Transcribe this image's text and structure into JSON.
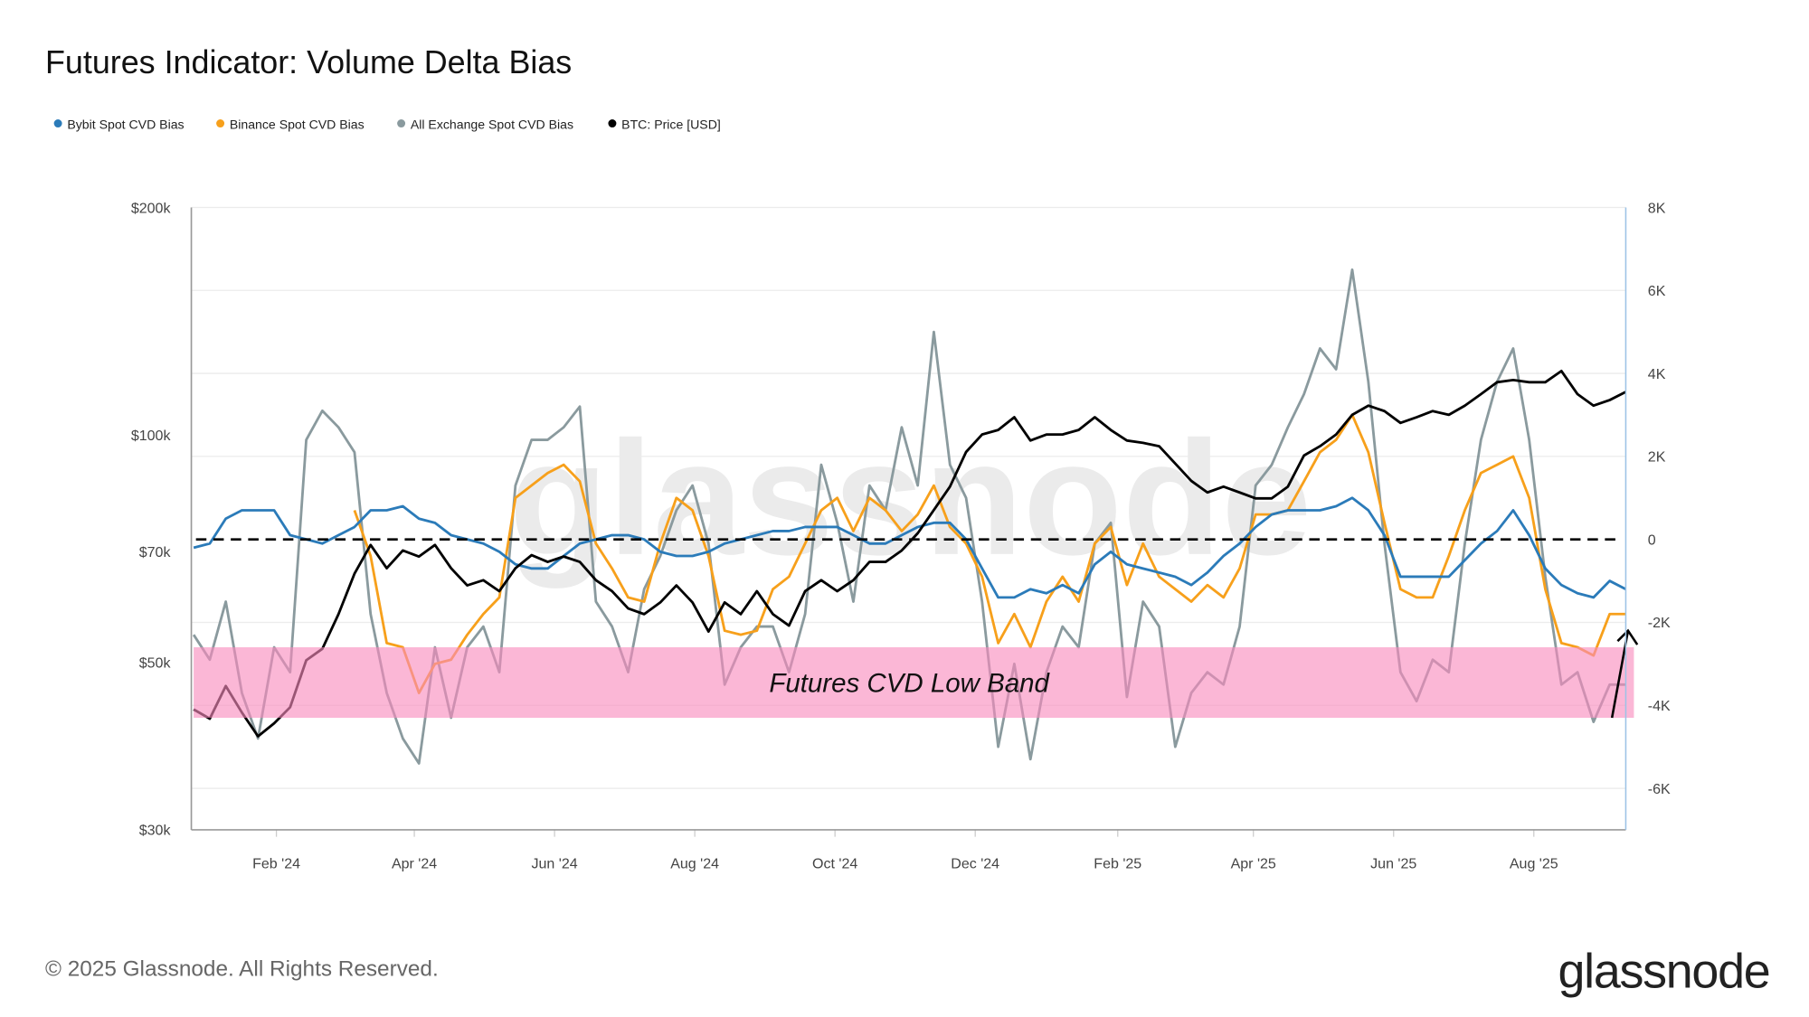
{
  "title": "Futures Indicator: Volume Delta Bias",
  "footer": {
    "copyright": "© 2025 Glassnode. All Rights Reserved.",
    "logo_text": "glassnode",
    "watermark_text": "glassnode"
  },
  "legend": [
    {
      "label": "Bybit Spot CVD Bias",
      "color": "#2b7bb9"
    },
    {
      "label": "Binance Spot CVD Bias",
      "color": "#f7a01b"
    },
    {
      "label": "All Exchange Spot CVD Bias",
      "color": "#8a9a9e"
    },
    {
      "label": "BTC: Price [USD]",
      "color": "#000000"
    }
  ],
  "chart_data": {
    "type": "line",
    "title": "Futures Indicator: Volume Delta Bias",
    "xlim": [
      "2023-12-26",
      "2025-09-10"
    ],
    "x_ticks": [
      {
        "date": "2024-02-01",
        "label": "Feb '24"
      },
      {
        "date": "2024-04-01",
        "label": "Apr '24"
      },
      {
        "date": "2024-06-01",
        "label": "Jun '24"
      },
      {
        "date": "2024-08-01",
        "label": "Aug '24"
      },
      {
        "date": "2024-10-01",
        "label": "Oct '24"
      },
      {
        "date": "2024-12-01",
        "label": "Dec '24"
      },
      {
        "date": "2025-02-01",
        "label": "Feb '25"
      },
      {
        "date": "2025-04-01",
        "label": "Apr '25"
      },
      {
        "date": "2025-06-01",
        "label": "Jun '25"
      },
      {
        "date": "2025-08-01",
        "label": "Aug '25"
      }
    ],
    "y_left": {
      "scale": "log",
      "range": [
        30000,
        200000
      ],
      "ticks": [
        {
          "value": 200000,
          "label": "$200k"
        },
        {
          "value": 100000,
          "label": "$100k"
        },
        {
          "value": 70000,
          "label": "$70k"
        },
        {
          "value": 50000,
          "label": "$50k"
        },
        {
          "value": 30000,
          "label": "$30k"
        }
      ]
    },
    "y_right": {
      "scale": "linear",
      "range": [
        -7000,
        8000
      ],
      "ticks": [
        {
          "value": 8000,
          "label": "8K"
        },
        {
          "value": 6000,
          "label": "6K"
        },
        {
          "value": 4000,
          "label": "4K"
        },
        {
          "value": 2000,
          "label": "2K"
        },
        {
          "value": 0,
          "label": "0"
        },
        {
          "value": -2000,
          "label": "-2K"
        },
        {
          "value": -4000,
          "label": "-4K"
        },
        {
          "value": -6000,
          "label": "-6K"
        }
      ]
    },
    "grid": true,
    "legend_position": "top-left",
    "zero_line": {
      "value": 0,
      "style": "dashed",
      "color": "#000000"
    },
    "band": {
      "label": "Futures CVD Low Band",
      "from": -4300,
      "to": -2600,
      "color": "#f98bbd"
    },
    "annotation_arrow": {
      "from": {
        "date": "2025-09-04",
        "value": -4300
      },
      "to": {
        "date": "2025-09-13",
        "value": -2200
      },
      "color": "#000000"
    },
    "dates": [
      "2023-12-27",
      "2024-01-03",
      "2024-01-10",
      "2024-01-17",
      "2024-01-24",
      "2024-01-31",
      "2024-02-07",
      "2024-02-14",
      "2024-02-21",
      "2024-02-28",
      "2024-03-06",
      "2024-03-13",
      "2024-03-20",
      "2024-03-27",
      "2024-04-03",
      "2024-04-10",
      "2024-04-17",
      "2024-04-24",
      "2024-05-01",
      "2024-05-08",
      "2024-05-15",
      "2024-05-22",
      "2024-05-29",
      "2024-06-05",
      "2024-06-12",
      "2024-06-19",
      "2024-06-26",
      "2024-07-03",
      "2024-07-10",
      "2024-07-17",
      "2024-07-24",
      "2024-07-31",
      "2024-08-07",
      "2024-08-14",
      "2024-08-21",
      "2024-08-28",
      "2024-09-04",
      "2024-09-11",
      "2024-09-18",
      "2024-09-25",
      "2024-10-02",
      "2024-10-09",
      "2024-10-16",
      "2024-10-23",
      "2024-10-30",
      "2024-11-06",
      "2024-11-13",
      "2024-11-20",
      "2024-11-27",
      "2024-12-04",
      "2024-12-11",
      "2024-12-18",
      "2024-12-25",
      "2025-01-01",
      "2025-01-08",
      "2025-01-15",
      "2025-01-22",
      "2025-01-29",
      "2025-02-05",
      "2025-02-12",
      "2025-02-19",
      "2025-02-26",
      "2025-03-05",
      "2025-03-12",
      "2025-03-19",
      "2025-03-26",
      "2025-04-02",
      "2025-04-09",
      "2025-04-16",
      "2025-04-23",
      "2025-04-30",
      "2025-05-07",
      "2025-05-14",
      "2025-05-21",
      "2025-05-28",
      "2025-06-04",
      "2025-06-11",
      "2025-06-18",
      "2025-06-25",
      "2025-07-02",
      "2025-07-09",
      "2025-07-16",
      "2025-07-23",
      "2025-07-30",
      "2025-08-06",
      "2025-08-13",
      "2025-08-20",
      "2025-08-27",
      "2025-09-03",
      "2025-09-10"
    ],
    "series": [
      {
        "name": "All Exchange Spot CVD Bias",
        "axis": "right",
        "color": "#8a9a9e",
        "values": [
          -2300,
          -2900,
          -1500,
          -3700,
          -4800,
          -2600,
          -3200,
          2400,
          3100,
          2700,
          2100,
          -1800,
          -3700,
          -4800,
          -5400,
          -2600,
          -4300,
          -2600,
          -2100,
          -3200,
          1300,
          2400,
          2400,
          2700,
          3200,
          -1500,
          -2100,
          -3200,
          -1200,
          -400,
          700,
          1300,
          -100,
          -3500,
          -2600,
          -2100,
          -2100,
          -3200,
          -1800,
          1800,
          400,
          -1500,
          1300,
          700,
          2700,
          1300,
          5000,
          1800,
          1000,
          -1500,
          -5000,
          -3000,
          -5300,
          -3200,
          -2100,
          -2600,
          -100,
          400,
          -3800,
          -1500,
          -2100,
          -5000,
          -3700,
          -3200,
          -3500,
          -2100,
          1300,
          1800,
          2700,
          3500,
          4600,
          4100,
          6500,
          3800,
          -100,
          -3200,
          -3900,
          -2900,
          -3200,
          -100,
          2400,
          3800,
          4600,
          2400,
          -900,
          -3500,
          -3200,
          -4400,
          -3500,
          -3500
        ]
      },
      {
        "name": "Binance Spot CVD Bias",
        "axis": "right",
        "color": "#f7a01b",
        "values": [
          null,
          null,
          null,
          null,
          null,
          null,
          null,
          null,
          null,
          null,
          700,
          -400,
          -2500,
          -2600,
          -3700,
          -3000,
          -2900,
          -2300,
          -1800,
          -1400,
          1000,
          1300,
          1600,
          1800,
          1400,
          -100,
          -700,
          -1400,
          -1500,
          -100,
          1000,
          700,
          -400,
          -2200,
          -2300,
          -2200,
          -1200,
          -900,
          -100,
          700,
          1000,
          200,
          1000,
          700,
          200,
          600,
          1300,
          300,
          -100,
          -900,
          -2500,
          -1800,
          -2600,
          -1500,
          -900,
          -1500,
          -100,
          300,
          -1100,
          -100,
          -900,
          -1200,
          -1500,
          -1100,
          -1400,
          -700,
          600,
          600,
          700,
          1400,
          2100,
          2400,
          3000,
          2100,
          400,
          -1200,
          -1400,
          -1400,
          -400,
          700,
          1600,
          1800,
          2000,
          1000,
          -1200,
          -2500,
          -2600,
          -2800,
          -1800,
          -1800
        ]
      },
      {
        "name": "Bybit Spot CVD Bias",
        "axis": "right",
        "color": "#2b7bb9",
        "values": [
          -200,
          -100,
          500,
          700,
          700,
          700,
          100,
          0,
          -100,
          100,
          300,
          700,
          700,
          800,
          500,
          400,
          100,
          0,
          -100,
          -300,
          -600,
          -700,
          -700,
          -400,
          -100,
          0,
          100,
          100,
          0,
          -300,
          -400,
          -400,
          -300,
          -100,
          0,
          100,
          200,
          200,
          300,
          300,
          300,
          100,
          -100,
          -100,
          100,
          300,
          400,
          400,
          0,
          -700,
          -1400,
          -1400,
          -1200,
          -1300,
          -1100,
          -1300,
          -600,
          -300,
          -600,
          -700,
          -800,
          -900,
          -1100,
          -800,
          -400,
          -100,
          300,
          600,
          700,
          700,
          700,
          800,
          1000,
          700,
          100,
          -900,
          -900,
          -900,
          -900,
          -500,
          -100,
          200,
          700,
          100,
          -700,
          -1100,
          -1300,
          -1400,
          -1000,
          -1200
        ]
      },
      {
        "name": "BTC: Price [USD]",
        "axis": "left",
        "color": "#000000",
        "values": [
          43300,
          42100,
          46500,
          42900,
          39900,
          41500,
          43600,
          50300,
          52100,
          57900,
          65500,
          71500,
          66600,
          70300,
          69000,
          71500,
          66600,
          63200,
          64200,
          62100,
          66600,
          69300,
          67900,
          69000,
          67900,
          64200,
          62100,
          58900,
          57900,
          60000,
          63200,
          60000,
          54900,
          60000,
          57900,
          62100,
          57900,
          55900,
          62100,
          64200,
          62100,
          64200,
          67900,
          67900,
          70300,
          74100,
          79500,
          85400,
          94900,
          100100,
          101500,
          105500,
          98300,
          100100,
          100100,
          101500,
          105500,
          101500,
          98300,
          97600,
          96600,
          91600,
          86900,
          83900,
          85400,
          83900,
          82400,
          82400,
          85400,
          93900,
          96600,
          100100,
          106300,
          109300,
          107500,
          103700,
          105500,
          107500,
          106300,
          109300,
          113200,
          117400,
          118200,
          117400,
          117400,
          121500,
          113200,
          109300,
          111200,
          114000
        ]
      }
    ]
  }
}
